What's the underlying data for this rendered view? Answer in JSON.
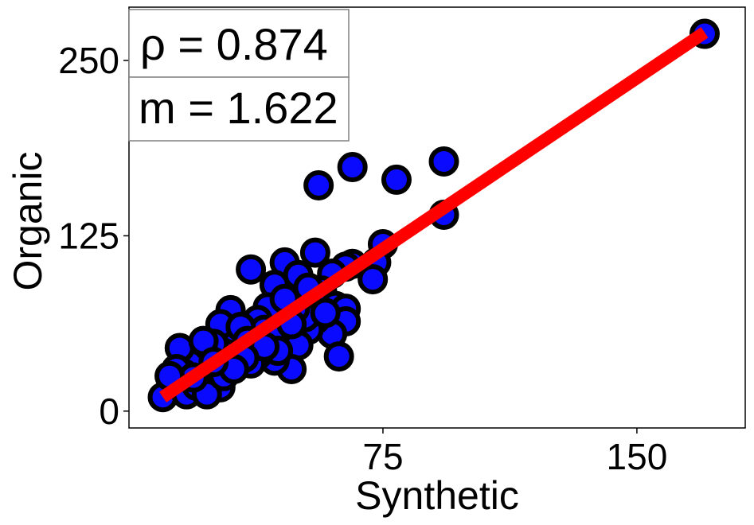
{
  "chart_data": {
    "type": "scatter",
    "xlabel": "Synthetic",
    "ylabel": "Organic",
    "xlim": [
      0,
      182
    ],
    "ylim": [
      -12,
      288
    ],
    "xticks": [
      75,
      150
    ],
    "yticks": [
      0,
      125,
      250
    ],
    "grid": false,
    "annotations": {
      "rho": "ρ = 0.874",
      "slope": "m = 1.622"
    },
    "colors": {
      "points": "#0a0aff",
      "point_edge": "#000000",
      "fit_line": "#ff0000"
    },
    "fit_line": {
      "x": [
        10,
        170
      ],
      "y": [
        10,
        270
      ]
    },
    "points": [
      [
        170,
        269
      ],
      [
        93,
        178
      ],
      [
        79,
        165
      ],
      [
        66,
        174
      ],
      [
        56,
        161
      ],
      [
        93,
        140
      ],
      [
        75,
        119
      ],
      [
        73,
        106
      ],
      [
        72,
        94
      ],
      [
        66,
        105
      ],
      [
        64,
        103
      ],
      [
        55,
        113
      ],
      [
        46,
        106
      ],
      [
        50,
        97
      ],
      [
        36,
        101
      ],
      [
        43,
        90
      ],
      [
        60,
        98
      ],
      [
        57,
        86
      ],
      [
        58,
        79
      ],
      [
        61,
        75
      ],
      [
        64,
        73
      ],
      [
        64,
        64
      ],
      [
        60,
        55
      ],
      [
        62,
        39
      ],
      [
        55,
        65
      ],
      [
        53,
        58
      ],
      [
        52,
        67
      ],
      [
        50,
        47
      ],
      [
        48,
        30
      ],
      [
        43,
        36
      ],
      [
        49,
        73
      ],
      [
        45,
        71
      ],
      [
        41,
        74
      ],
      [
        38,
        65
      ],
      [
        40,
        58
      ],
      [
        42,
        53
      ],
      [
        44,
        43
      ],
      [
        38,
        40
      ],
      [
        36,
        34
      ],
      [
        33,
        45
      ],
      [
        30,
        40
      ],
      [
        29,
        52
      ],
      [
        31,
        58
      ],
      [
        30,
        72
      ],
      [
        27,
        62
      ],
      [
        33,
        60
      ],
      [
        25,
        48
      ],
      [
        22,
        42
      ],
      [
        21,
        30
      ],
      [
        24,
        22
      ],
      [
        27,
        17
      ],
      [
        18,
        34
      ],
      [
        16,
        27
      ],
      [
        15,
        45
      ],
      [
        14,
        30
      ],
      [
        14,
        20
      ],
      [
        12,
        15
      ],
      [
        10,
        10
      ],
      [
        17,
        12
      ],
      [
        20,
        18
      ],
      [
        23,
        12
      ],
      [
        19,
        24
      ],
      [
        12,
        25
      ],
      [
        26,
        32
      ],
      [
        28,
        25
      ],
      [
        35,
        50
      ],
      [
        46,
        80
      ],
      [
        53,
        88
      ],
      [
        58,
        70
      ],
      [
        48,
        62
      ],
      [
        40,
        46
      ],
      [
        34,
        38
      ],
      [
        31,
        30
      ],
      [
        22,
        50
      ],
      [
        25,
        35
      ]
    ]
  }
}
